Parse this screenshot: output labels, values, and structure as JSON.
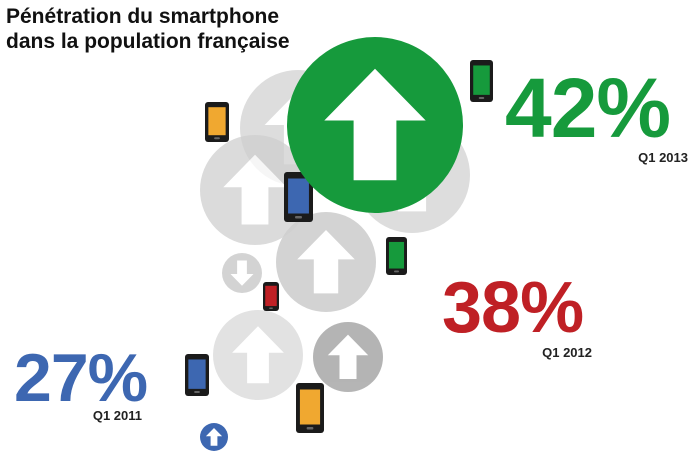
{
  "title_lines": [
    "Pénétration du smartphone",
    "dans la population française"
  ],
  "colors": {
    "green": "#169a3c",
    "red": "#bf2025",
    "blue": "#3d67b1",
    "orange": "#f0a830",
    "circle_grey": "#cfcfcf",
    "circle_dark_grey": "#a8a8a8"
  },
  "chart_data": {
    "type": "bar",
    "title": "Pénétration du smartphone dans la population française",
    "xlabel": "",
    "ylabel": "",
    "categories": [
      "Q1 2011",
      "Q1 2012",
      "Q1 2013"
    ],
    "values": [
      27,
      38,
      42
    ],
    "value_labels": [
      "27%",
      "38%",
      "42%"
    ],
    "series_colors": [
      "#3d67b1",
      "#bf2025",
      "#169a3c"
    ]
  }
}
